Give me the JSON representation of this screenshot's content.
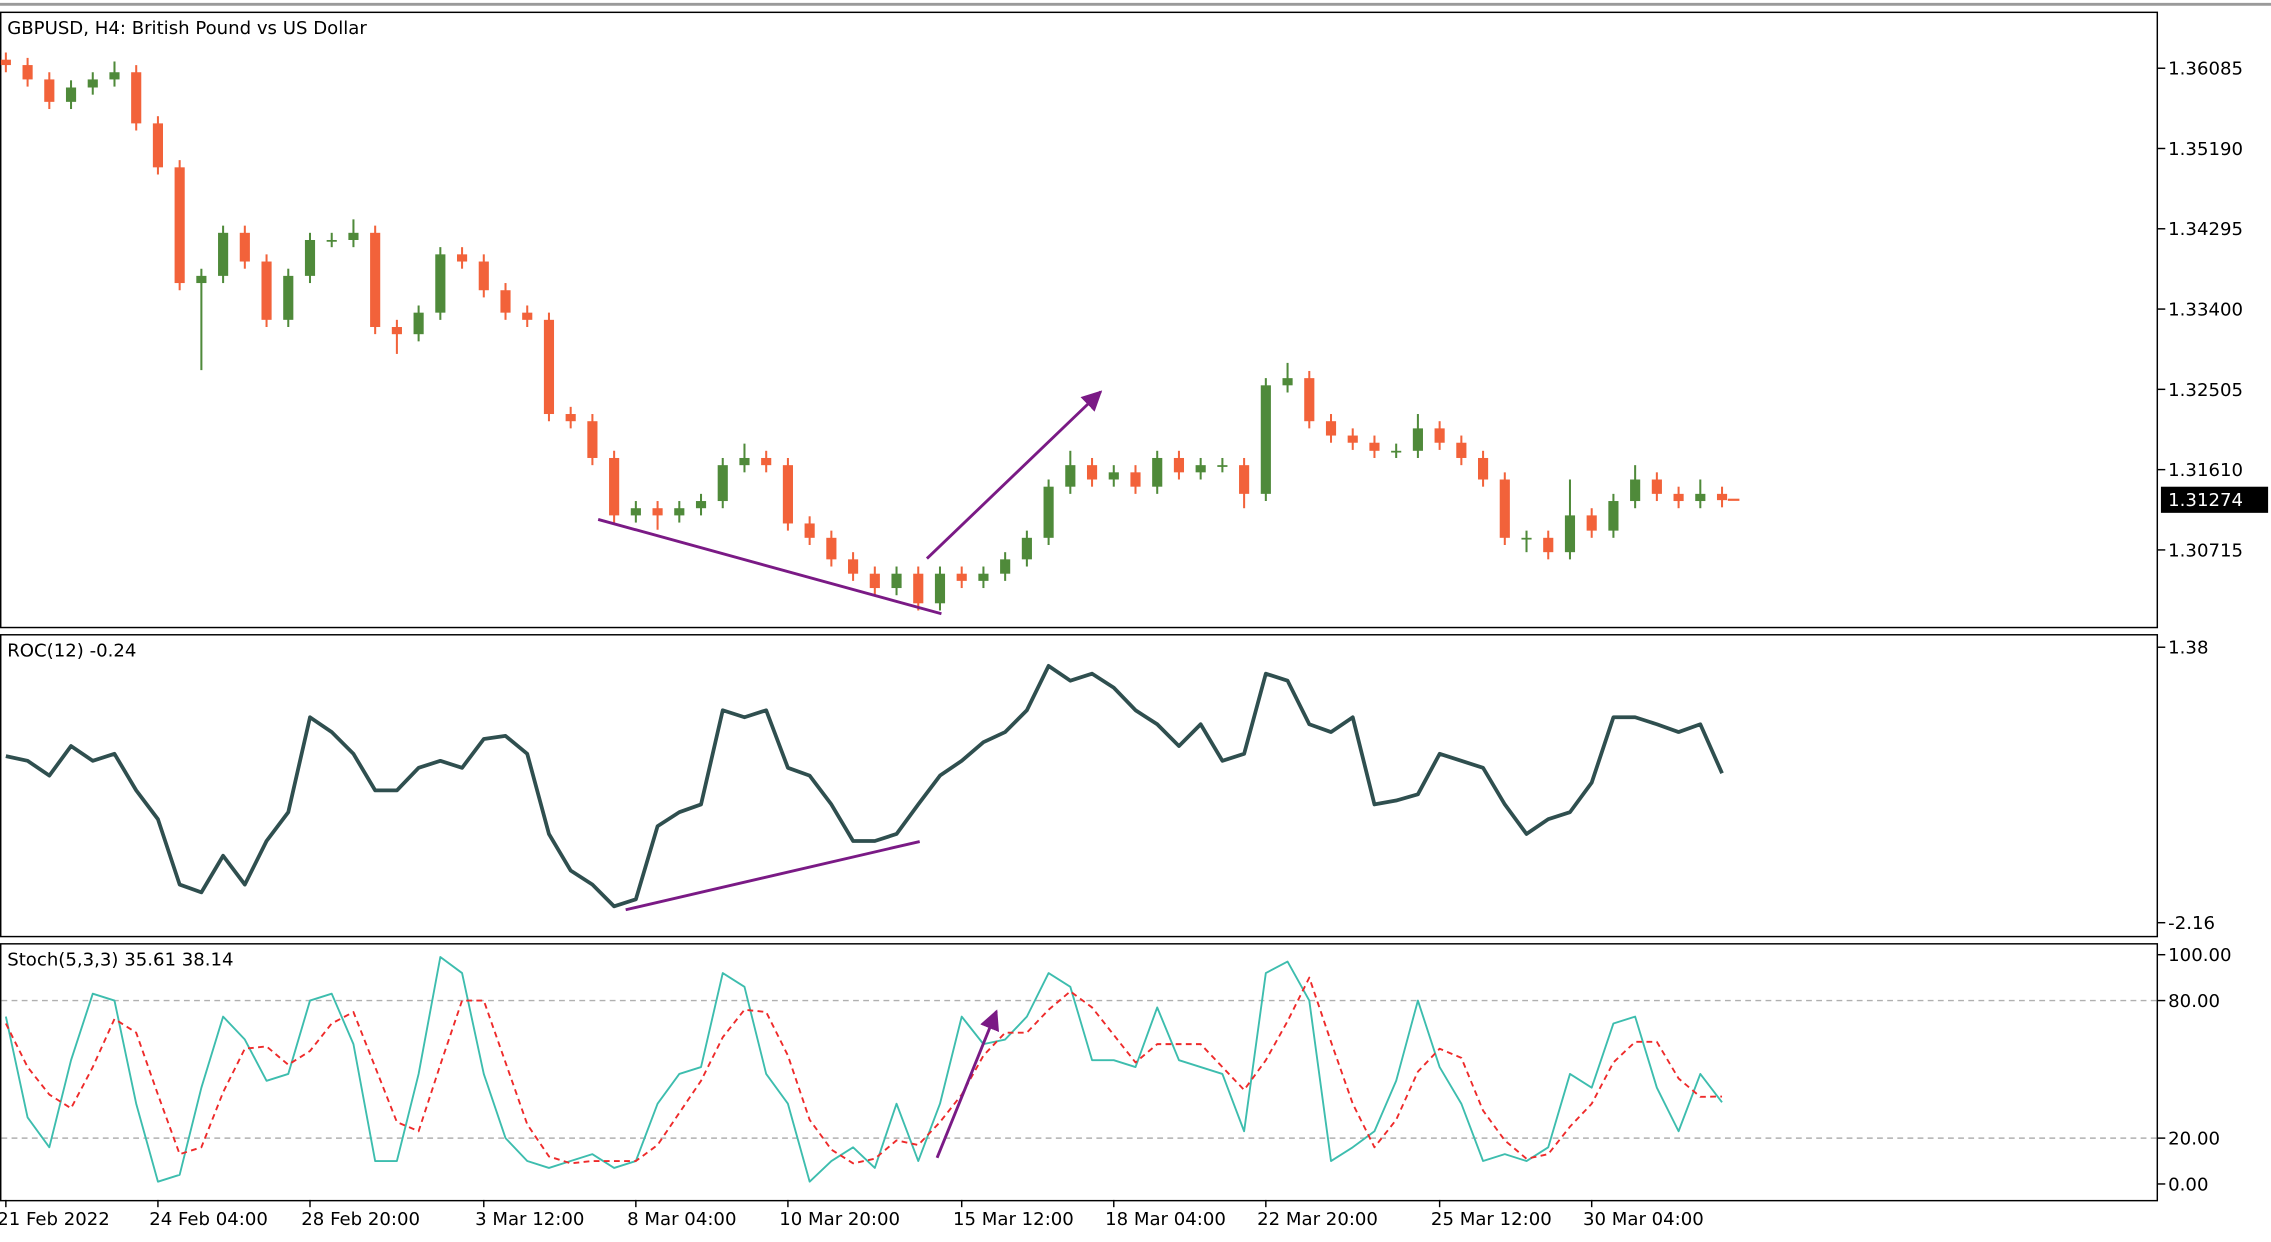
{
  "chart_data": [
    {
      "type": "candlestick",
      "title": "GBPUSD, H4:  British Pound vs US Dollar",
      "up_color": "#4f8a3a",
      "down_color": "#f2623a",
      "xlim": [
        -0.27,
        99.07
      ],
      "ylim": [
        1.29858,
        1.36716
      ],
      "yticks": [
        1.36085,
        {
          "value": 1.3519,
          "label": "1.35190"
        },
        1.34295,
        {
          "value": 1.334,
          "label": "1.33400"
        },
        1.32505,
        {
          "value": 1.3161,
          "label": "1.31610"
        },
        1.30715
      ],
      "current_price": 1.31274,
      "open": [
        1.3618,
        1.3612,
        1.3596,
        1.3571,
        1.3587,
        1.3596,
        1.3604,
        1.3547,
        1.3498,
        1.3369,
        1.3377,
        1.3425,
        1.3393,
        1.3328,
        1.3377,
        1.3417,
        1.3417,
        1.3425,
        1.332,
        1.3312,
        1.3336,
        1.3401,
        1.3393,
        1.3361,
        1.3336,
        1.3328,
        1.3223,
        1.3215,
        1.3174,
        1.311,
        1.3118,
        1.311,
        1.3118,
        1.3126,
        1.3166,
        1.3174,
        1.3166,
        1.3101,
        1.3085,
        1.3061,
        1.3045,
        1.3029,
        1.3045,
        1.3012,
        1.3045,
        1.3037,
        1.3045,
        1.3061,
        1.3085,
        1.3142,
        1.3166,
        1.315,
        1.3158,
        1.3142,
        1.3174,
        1.3158,
        1.3166,
        1.3166,
        1.3134,
        1.3255,
        1.3263,
        1.3215,
        1.3199,
        1.3191,
        1.3182,
        1.3182,
        1.3207,
        1.3191,
        1.3174,
        1.315,
        1.3085,
        1.3085,
        1.3069,
        1.311,
        1.3093,
        1.3126,
        1.315,
        1.3134,
        1.3126,
        1.3134
      ],
      "high": [
        1.3626,
        1.362,
        1.3604,
        1.3595,
        1.3604,
        1.3616,
        1.3612,
        1.3555,
        1.3506,
        1.3385,
        1.3433,
        1.3433,
        1.3401,
        1.3385,
        1.3425,
        1.3425,
        1.344,
        1.3433,
        1.3328,
        1.3344,
        1.3409,
        1.3409,
        1.3401,
        1.3369,
        1.3344,
        1.3336,
        1.3231,
        1.3223,
        1.3182,
        1.3126,
        1.3126,
        1.3126,
        1.3134,
        1.3174,
        1.319,
        1.3182,
        1.3174,
        1.3109,
        1.3093,
        1.3069,
        1.3053,
        1.3053,
        1.3053,
        1.3053,
        1.3053,
        1.3053,
        1.3069,
        1.3093,
        1.315,
        1.3182,
        1.3174,
        1.3166,
        1.3166,
        1.3182,
        1.3182,
        1.3174,
        1.3174,
        1.3174,
        1.3263,
        1.328,
        1.3271,
        1.3223,
        1.3207,
        1.3199,
        1.319,
        1.3223,
        1.3215,
        1.3199,
        1.3182,
        1.3158,
        1.3093,
        1.3093,
        1.315,
        1.3118,
        1.3134,
        1.3166,
        1.3158,
        1.3142,
        1.315,
        1.3142
      ],
      "low": [
        1.3604,
        1.3588,
        1.3563,
        1.3563,
        1.3579,
        1.3588,
        1.3539,
        1.349,
        1.3361,
        1.3272,
        1.3369,
        1.3385,
        1.332,
        1.332,
        1.3369,
        1.3409,
        1.3409,
        1.3312,
        1.329,
        1.3304,
        1.3328,
        1.3385,
        1.3353,
        1.3328,
        1.332,
        1.3215,
        1.3207,
        1.3166,
        1.3102,
        1.3102,
        1.3094,
        1.3102,
        1.311,
        1.3118,
        1.3158,
        1.3158,
        1.3093,
        1.3077,
        1.3053,
        1.3037,
        1.3021,
        1.3021,
        1.3004,
        1.3004,
        1.3029,
        1.3029,
        1.3037,
        1.3053,
        1.3077,
        1.3134,
        1.3142,
        1.3142,
        1.3134,
        1.3134,
        1.315,
        1.315,
        1.3158,
        1.3118,
        1.3126,
        1.3247,
        1.3207,
        1.3191,
        1.3183,
        1.3174,
        1.3174,
        1.3174,
        1.3183,
        1.3166,
        1.3142,
        1.3077,
        1.3069,
        1.3061,
        1.3061,
        1.3085,
        1.3085,
        1.3118,
        1.3126,
        1.3118,
        1.3118,
        1.3119
      ],
      "close": [
        1.3612,
        1.3596,
        1.3571,
        1.3587,
        1.3596,
        1.3604,
        1.3547,
        1.3498,
        1.3369,
        1.3377,
        1.3425,
        1.3393,
        1.3328,
        1.3377,
        1.3417,
        1.3417,
        1.3425,
        1.332,
        1.3312,
        1.3336,
        1.3401,
        1.3393,
        1.3361,
        1.3336,
        1.3328,
        1.3223,
        1.3215,
        1.3174,
        1.311,
        1.3118,
        1.311,
        1.3118,
        1.3126,
        1.3166,
        1.3174,
        1.3166,
        1.3101,
        1.3085,
        1.3061,
        1.3045,
        1.3029,
        1.3045,
        1.3012,
        1.3045,
        1.3037,
        1.3045,
        1.3061,
        1.3085,
        1.3142,
        1.3166,
        1.315,
        1.3158,
        1.3142,
        1.3174,
        1.3158,
        1.3166,
        1.3166,
        1.3134,
        1.3255,
        1.3263,
        1.3215,
        1.3199,
        1.3191,
        1.3182,
        1.3182,
        1.3207,
        1.3191,
        1.3174,
        1.315,
        1.3085,
        1.3085,
        1.3069,
        1.311,
        1.3093,
        1.3126,
        1.315,
        1.3134,
        1.3126,
        1.3134,
        1.3127
      ]
    },
    {
      "type": "line",
      "title": "ROC(12) -0.24",
      "xlim": [
        -0.27,
        99.07
      ],
      "ylim": [
        -2.329,
        1.549
      ],
      "yticks": [
        1.38,
        -2.16
      ],
      "series": [
        {
          "color": "#2f4f4f",
          "width": 2.6,
          "dash": false,
          "values": [
            -0.02,
            -0.08,
            -0.27,
            0.11,
            -0.08,
            0.01,
            -0.46,
            -0.83,
            -1.67,
            -1.77,
            -1.3,
            -1.67,
            -1.11,
            -0.74,
            0.48,
            0.29,
            0.01,
            -0.46,
            -0.46,
            -0.17,
            -0.08,
            -0.17,
            0.2,
            0.24,
            0.01,
            -1.02,
            -1.49,
            -1.67,
            -1.95,
            -1.86,
            -0.92,
            -0.74,
            -0.64,
            0.57,
            0.48,
            0.57,
            -0.17,
            -0.27,
            -0.64,
            -1.11,
            -1.11,
            -1.02,
            -0.64,
            -0.27,
            -0.08,
            0.16,
            0.29,
            0.57,
            1.14,
            0.95,
            1.04,
            0.86,
            0.57,
            0.39,
            0.11,
            0.39,
            -0.08,
            0.01,
            1.04,
            0.95,
            0.39,
            0.29,
            0.48,
            -0.64,
            -0.59,
            -0.51,
            0.01,
            -0.08,
            -0.17,
            -0.64,
            -1.02,
            -0.83,
            -0.74,
            -0.36,
            0.48,
            0.48,
            0.39,
            0.29,
            0.39,
            -0.24
          ]
        }
      ]
    },
    {
      "type": "line",
      "title": "Stoch(5,3,3) 35.61 38.14",
      "xlim": [
        -0.27,
        99.07
      ],
      "ylim": [
        -6.96,
        105.06
      ],
      "yticks": [
        {
          "value": 100,
          "label": "100.00"
        },
        {
          "value": 80,
          "label": "80.00"
        },
        {
          "value": 20,
          "label": "20.00"
        },
        {
          "value": 0,
          "label": "0.00"
        }
      ],
      "levels": [
        80,
        20
      ],
      "xticks": [
        {
          "value": 0,
          "label": "21 Feb 2022"
        },
        {
          "value": 7,
          "label": "24 Feb 04:00"
        },
        {
          "value": 14,
          "label": "28 Feb 20:00"
        },
        {
          "value": 22,
          "label": "3 Mar 12:00"
        },
        {
          "value": 29,
          "label": "8 Mar 04:00"
        },
        {
          "value": 36,
          "label": "10 Mar 20:00"
        },
        {
          "value": 44,
          "label": "15 Mar 12:00"
        },
        {
          "value": 51,
          "label": "18 Mar 04:00"
        },
        {
          "value": 58,
          "label": "22 Mar 20:00"
        },
        {
          "value": 66,
          "label": "25 Mar 12:00"
        },
        {
          "value": 73,
          "label": "30 Mar 04:00"
        }
      ],
      "series": [
        {
          "color": "#3dbdae",
          "width": 1.3,
          "dash": false,
          "values": [
            73,
            29,
            16,
            54,
            83,
            80,
            35,
            1,
            4,
            42,
            73,
            63,
            45,
            48,
            80,
            83,
            61,
            10,
            10,
            48,
            99,
            92,
            48,
            20,
            10,
            7,
            10,
            13,
            7,
            10,
            35,
            48,
            51,
            92,
            86,
            48,
            35,
            1,
            10,
            16,
            7,
            35,
            10,
            35,
            73,
            61,
            63,
            73,
            92,
            86,
            54,
            54,
            51,
            77,
            54,
            51,
            48,
            23,
            92,
            97,
            80,
            10,
            16,
            23,
            45,
            80,
            51,
            35,
            10,
            13,
            10,
            16,
            48,
            42,
            70,
            73,
            42,
            23,
            48,
            35.61
          ]
        },
        {
          "color": "#ee2a2a",
          "width": 1.3,
          "dash": true,
          "values": [
            70,
            51,
            39,
            33,
            51,
            72,
            66,
            39,
            13,
            16,
            40,
            59,
            60,
            52,
            58,
            70,
            75,
            51,
            27,
            23,
            52,
            80,
            80,
            53,
            26,
            12,
            9,
            10,
            10,
            10,
            17,
            31,
            45,
            64,
            76,
            75,
            56,
            28,
            15,
            9,
            11,
            19,
            17,
            27,
            39,
            56,
            66,
            66,
            76,
            84,
            77,
            65,
            53,
            61,
            61,
            61,
            51,
            41,
            54,
            71,
            90,
            62,
            35,
            16,
            28,
            49,
            59,
            55,
            32,
            19,
            11,
            13,
            25,
            35,
            53,
            62,
            62,
            46,
            38,
            38.14
          ]
        }
      ]
    }
  ]
}
